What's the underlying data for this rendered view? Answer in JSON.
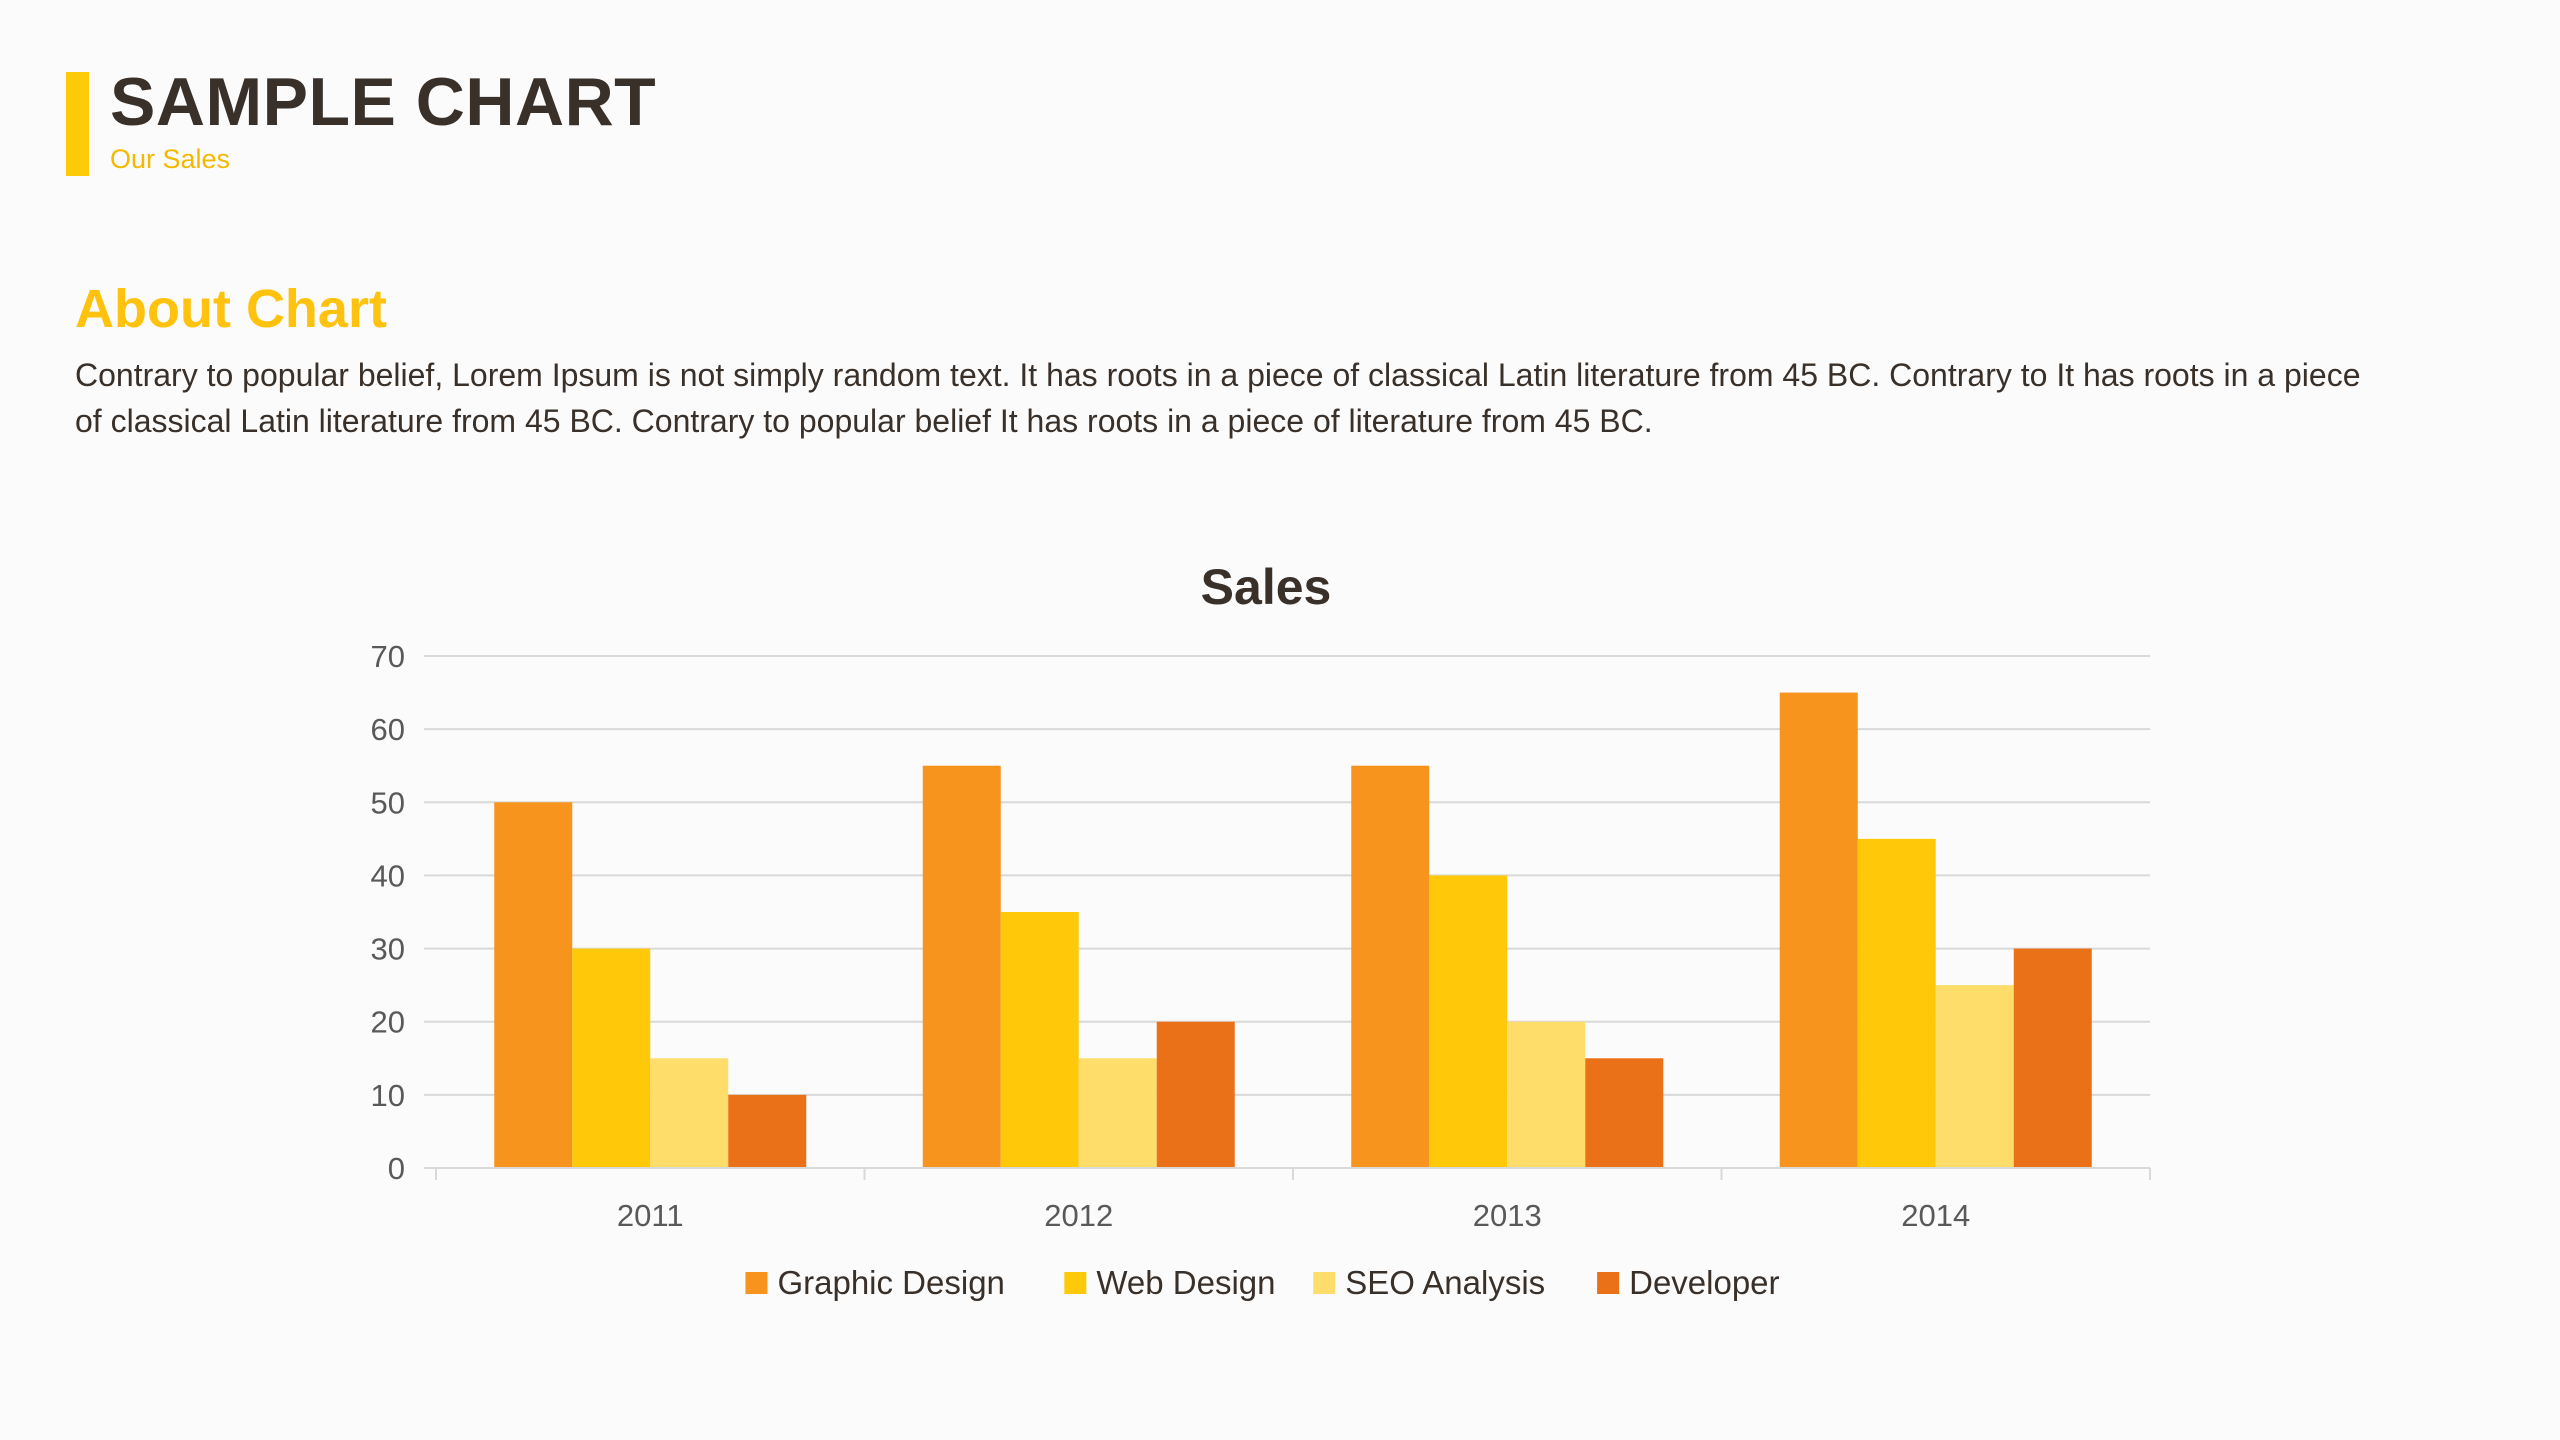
{
  "header": {
    "title": "SAMPLE CHART",
    "subtitle": "Our Sales"
  },
  "about": {
    "heading": "About Chart",
    "body": "Contrary to popular belief, Lorem Ipsum is not simply random text. It has roots in a piece of classical Latin literature from 45 BC. Contrary to It has roots in a piece of classical Latin literature from 45 BC. Contrary to popular belief It has roots in a piece of literature from 45 BC."
  },
  "colors": {
    "accent": "#ffcb08",
    "heading": "#ffc20e",
    "text": "#3a302a"
  },
  "chart_data": {
    "type": "bar",
    "title": "Sales",
    "xlabel": "",
    "ylabel": "",
    "ylim": [
      0,
      70
    ],
    "yticks": [
      0,
      10,
      20,
      30,
      40,
      50,
      60,
      70
    ],
    "grid": true,
    "legend_position": "bottom",
    "categories": [
      "2011",
      "2012",
      "2013",
      "2014"
    ],
    "series": [
      {
        "name": "Graphic Design",
        "color": "#f7941d",
        "values": [
          50,
          55,
          55,
          65
        ]
      },
      {
        "name": "Web Design",
        "color": "#ffc90a",
        "values": [
          30,
          35,
          40,
          45
        ]
      },
      {
        "name": "SEO Analysis",
        "color": "#ffdd6b",
        "values": [
          15,
          15,
          20,
          25
        ]
      },
      {
        "name": "Developer",
        "color": "#eb7118",
        "values": [
          10,
          20,
          15,
          30
        ]
      }
    ]
  }
}
